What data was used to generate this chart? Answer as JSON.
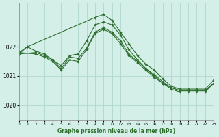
{
  "title": "Graphe pression niveau de la mer (hPa)",
  "background_color": "#d4eee8",
  "grid_color": "#b0d8cc",
  "line_color": "#2d6e2d",
  "marker_color": "#2d6e2d",
  "xlim": [
    0,
    23
  ],
  "ylim": [
    1019.5,
    1023.5
  ],
  "yticks": [
    1020,
    1021,
    1022
  ],
  "xticks": [
    0,
    1,
    2,
    3,
    4,
    5,
    6,
    7,
    8,
    9,
    10,
    11,
    12,
    13,
    14,
    15,
    16,
    17,
    18,
    19,
    20,
    21,
    22,
    23
  ],
  "series": [
    {
      "x": [
        0,
        1,
        2,
        3,
        4,
        5,
        6,
        7,
        8,
        9,
        10,
        11,
        12,
        13,
        14,
        15,
        16,
        17,
        18,
        19,
        20,
        21,
        22,
        23
      ],
      "y": [
        1021.8,
        1022.0,
        null,
        null,
        null,
        null,
        null,
        null,
        null,
        1023.0,
        1023.1,
        1022.9,
        1022.5,
        1022.1,
        1021.7,
        1021.4,
        1021.2,
        1020.9,
        1020.65,
        1020.55,
        1020.55,
        1020.55,
        1020.55,
        1020.85
      ]
    },
    {
      "x": [
        0,
        1,
        2,
        3,
        4,
        5,
        6,
        7,
        8,
        9,
        10,
        11,
        12,
        13,
        14,
        15,
        16,
        17,
        18,
        19,
        20,
        21,
        22,
        23
      ],
      "y": [
        1021.75,
        1022.0,
        1021.85,
        1021.75,
        1021.55,
        1021.35,
        1021.7,
        1021.75,
        1022.2,
        1022.75,
        1022.85,
        1022.75,
        1022.4,
        1021.9,
        1021.55,
        1021.25,
        1021.05,
        1020.8,
        1020.6,
        1020.5,
        1020.5,
        1020.5,
        1020.5,
        1020.75
      ]
    },
    {
      "x": [
        0,
        2,
        3,
        4,
        5,
        6,
        7,
        8,
        9,
        10,
        11,
        12,
        13,
        14,
        15,
        16,
        17,
        18,
        19,
        20,
        21,
        22,
        23
      ],
      "y": [
        1021.75,
        1021.8,
        1021.7,
        1021.55,
        1021.25,
        1021.65,
        1021.6,
        1021.95,
        1022.5,
        1022.65,
        1022.5,
        1022.2,
        1021.75,
        1021.5,
        1021.25,
        1021.0,
        1020.75,
        1020.6,
        1020.5,
        1020.5,
        1020.5,
        1020.5,
        1020.75
      ]
    },
    {
      "x": [
        0,
        2,
        3,
        4,
        5,
        6,
        7,
        8,
        9,
        10,
        11,
        12,
        13,
        14,
        15,
        16,
        17,
        18,
        19,
        20,
        21,
        22,
        23
      ],
      "y": [
        1021.8,
        1021.75,
        1021.65,
        1021.5,
        1021.2,
        1021.55,
        1021.5,
        1021.9,
        1022.45,
        1022.6,
        1022.45,
        1022.1,
        1021.7,
        1021.45,
        1021.2,
        1020.95,
        1020.75,
        1020.55,
        1020.45,
        1020.45,
        1020.45,
        1020.45,
        1020.75
      ]
    }
  ]
}
